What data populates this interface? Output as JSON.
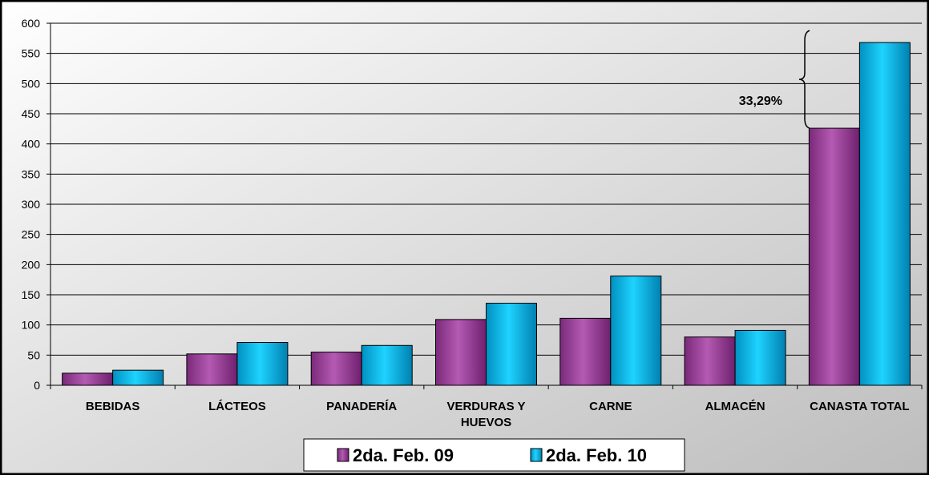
{
  "chart_data": {
    "type": "bar",
    "title": "",
    "xlabel": "",
    "ylabel": "",
    "ylim": [
      0,
      600
    ],
    "ytick_step": 50,
    "grid": true,
    "legend_position": "bottom",
    "categories": [
      [
        "BEBIDAS"
      ],
      [
        "LÁCTEOS"
      ],
      [
        "PANADERÍA"
      ],
      [
        "VERDURAS Y",
        "HUEVOS"
      ],
      [
        "CARNE"
      ],
      [
        "ALMACÉN"
      ],
      [
        "CANASTA TOTAL"
      ]
    ],
    "series": [
      {
        "name": "2da. Feb. 09",
        "color": "#9B3D9A",
        "values": [
          20,
          52,
          55,
          109,
          111,
          80,
          426
        ]
      },
      {
        "name": "2da. Feb. 10",
        "color": "#00B0E0",
        "values": [
          25,
          71,
          66,
          136,
          181,
          91,
          568
        ]
      }
    ],
    "annotation": {
      "text": "33,29%",
      "category_index": 6,
      "from_value": 426,
      "to_value": 568
    }
  }
}
